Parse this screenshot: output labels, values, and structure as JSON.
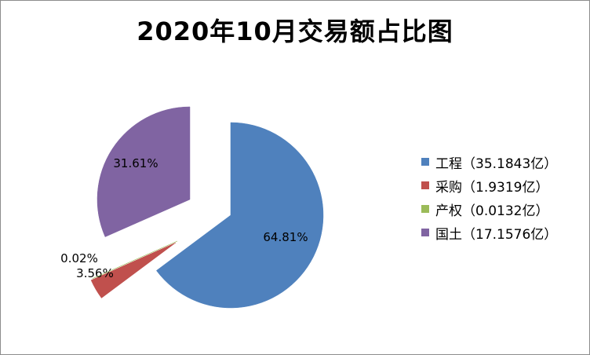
{
  "chart_data": {
    "type": "pie",
    "title": "2020年10月交易额占比图",
    "slices": [
      {
        "name": "工程",
        "legend": "工程（35.1843亿）",
        "value": 35.1843,
        "percent_label": "64.81%",
        "color": "#4f81bd"
      },
      {
        "name": "采购",
        "legend": "采购（1.9319亿）",
        "value": 1.9319,
        "percent_label": "3.56%",
        "color": "#c0504d"
      },
      {
        "name": "产权",
        "legend": "产权（0.0132亿）",
        "value": 0.0132,
        "percent_label": "0.02%",
        "color": "#9bbb59"
      },
      {
        "name": "国土",
        "legend": "国土（17.1576亿）",
        "value": 17.1576,
        "percent_label": "31.61%",
        "color": "#8064a2"
      }
    ],
    "legend_position": "right",
    "exploded": true
  }
}
